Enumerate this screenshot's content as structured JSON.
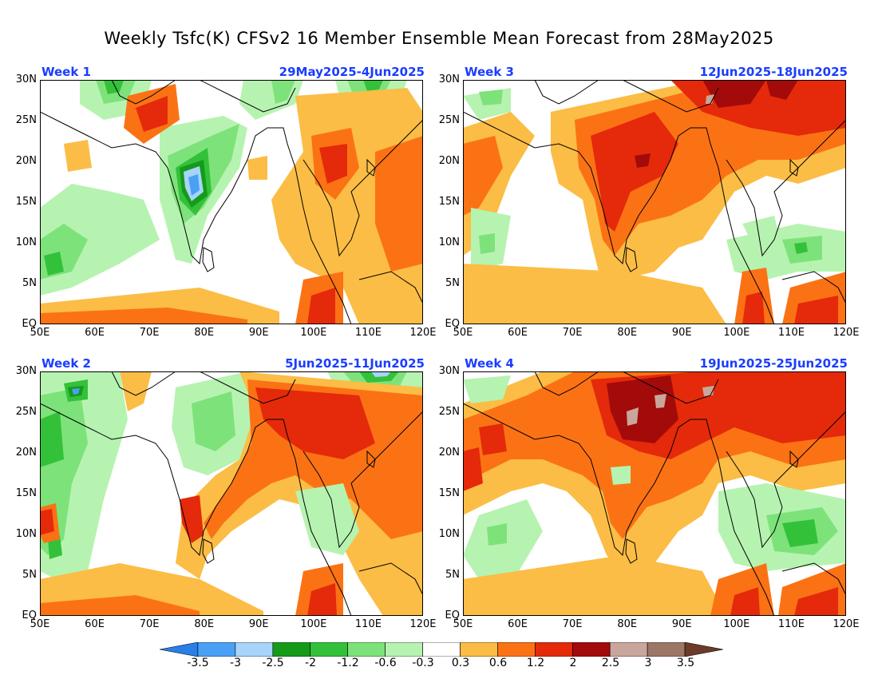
{
  "title": "Weekly Tsfc(K) CFSv2 16 Member Ensemble Mean Forecast from 28May2025",
  "panels": [
    {
      "label": "Week 1",
      "dates": "29May2025-4Jun2025"
    },
    {
      "label": "Week 3",
      "dates": "12Jun2025-18Jun2025"
    },
    {
      "label": "Week 2",
      "dates": "5Jun2025-11Jun2025"
    },
    {
      "label": "Week 4",
      "dates": "19Jun2025-25Jun2025"
    }
  ],
  "axes": {
    "y_ticks": [
      "30N",
      "25N",
      "20N",
      "15N",
      "10N",
      "5N",
      "EQ"
    ],
    "x_ticks": [
      "50E",
      "60E",
      "70E",
      "80E",
      "90E",
      "100E",
      "110E",
      "120E"
    ]
  },
  "colorbar": {
    "labels": [
      "-3.5",
      "-3",
      "-2.5",
      "-2",
      "-1.2",
      "-0.6",
      "-0.3",
      "0.3",
      "0.6",
      "1.2",
      "2",
      "2.5",
      "3",
      "3.5"
    ],
    "colors": [
      "#2a7fe8",
      "#4aa0f5",
      "#a8d4fa",
      "#159a1a",
      "#34c13a",
      "#7ee27a",
      "#b6f3b0",
      "#ffffff",
      "#fbbd45",
      "#fb7215",
      "#e42a0a",
      "#a30a0a",
      "#c9a69b",
      "#9c7767",
      "#6c3b2a"
    ]
  }
}
